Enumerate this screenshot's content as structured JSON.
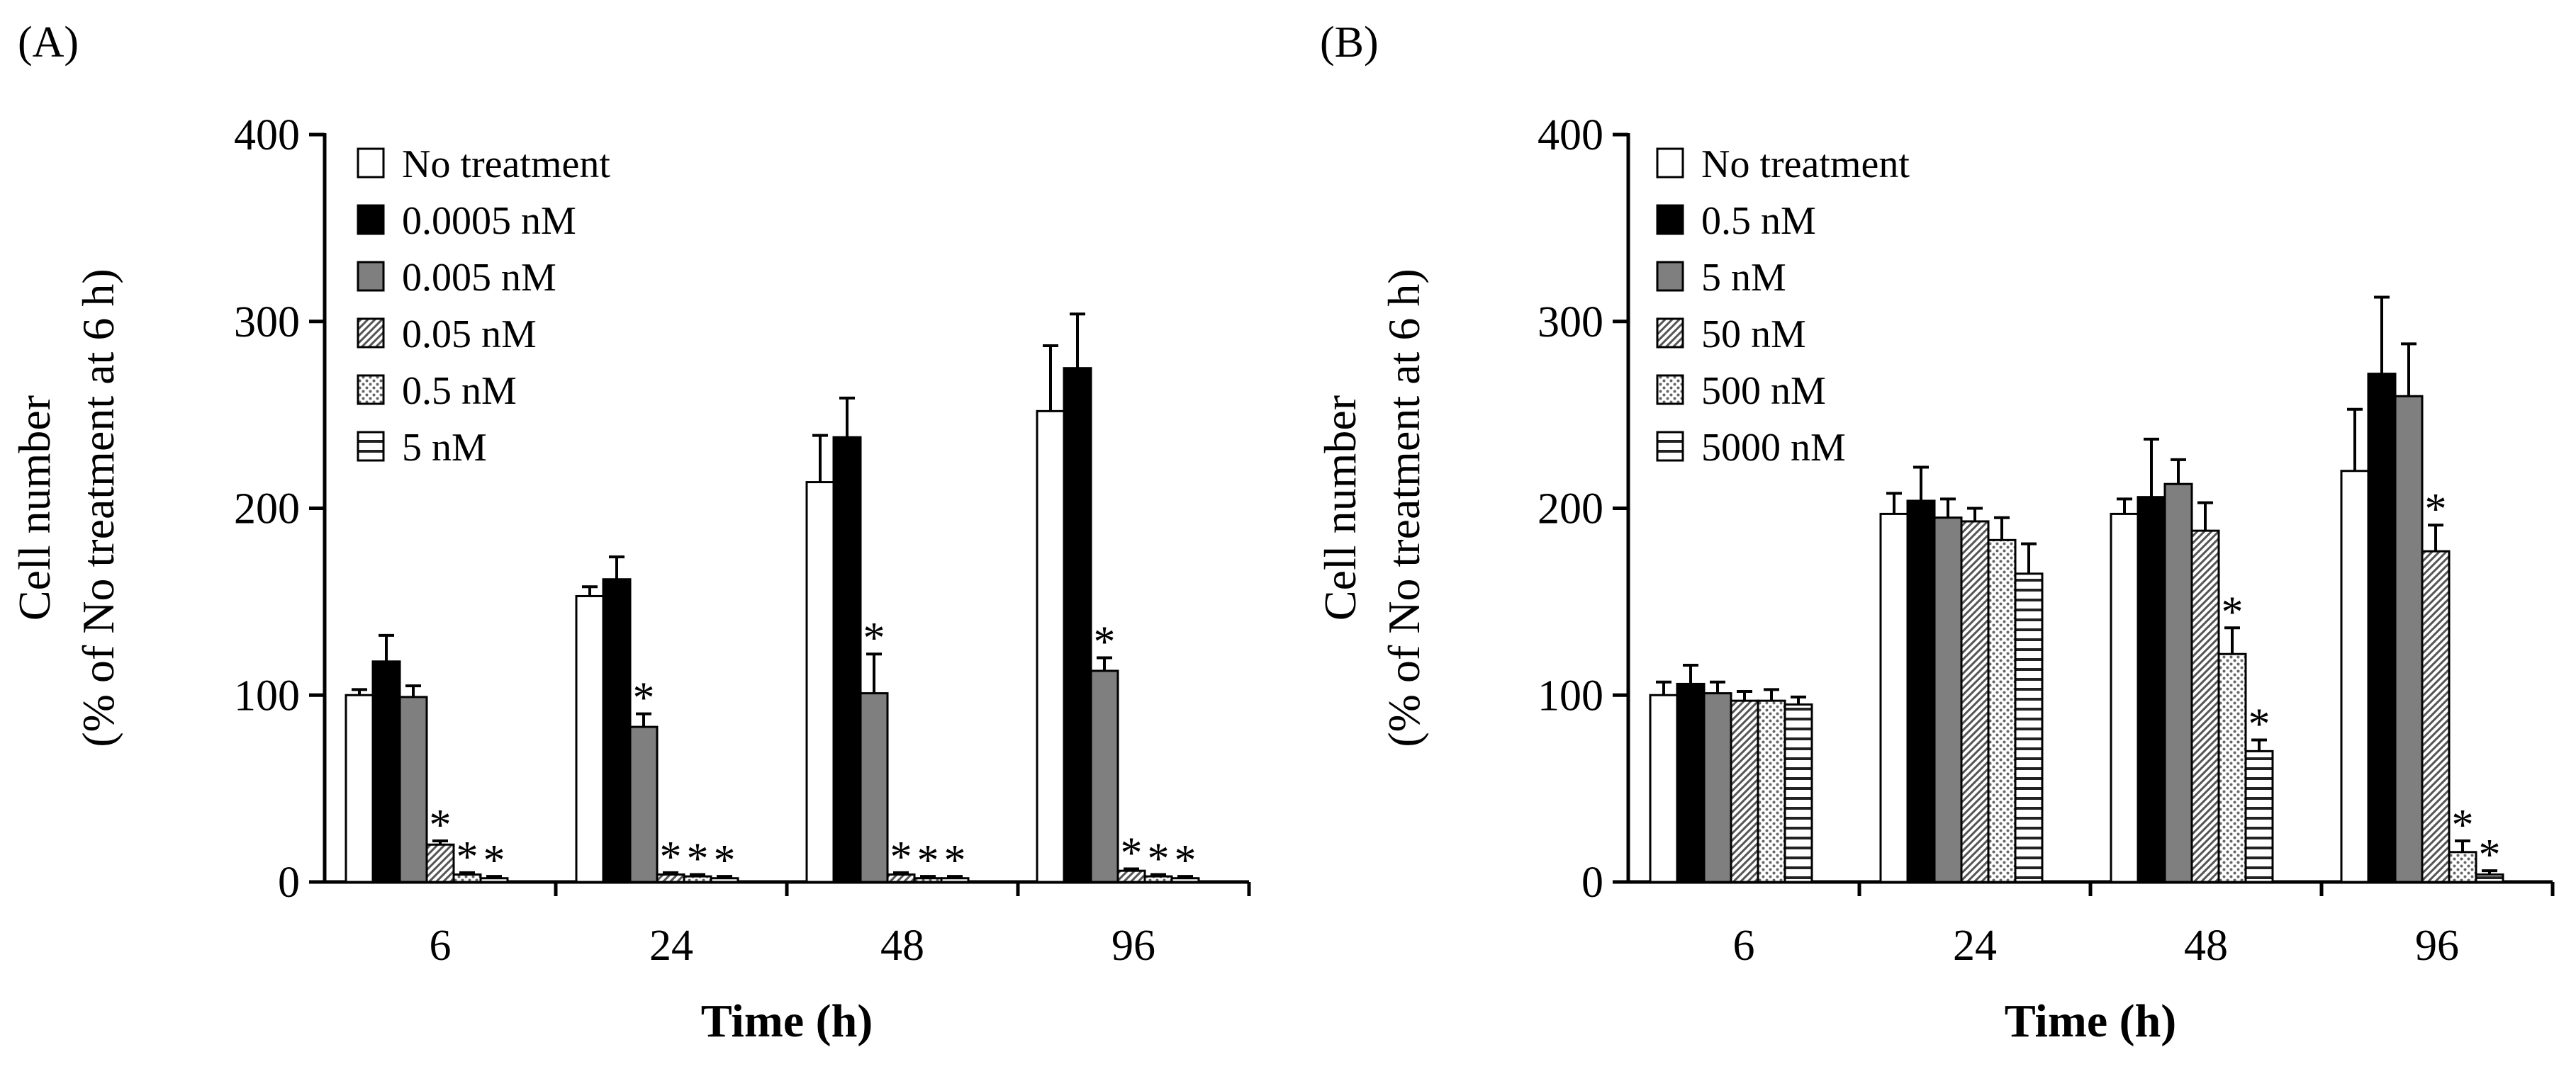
{
  "chart_data": [
    {
      "panel": "(A)",
      "type": "bar",
      "xlabel": "Time (h)",
      "ylabel_line1": "Cell number",
      "ylabel_line2": "(% of No treatment at 6 h)",
      "ylim": [
        0,
        400
      ],
      "yticks": [
        "0",
        "100",
        "200",
        "300",
        "400"
      ],
      "categories": [
        "6",
        "24",
        "48",
        "96"
      ],
      "series": [
        {
          "name": "No treatment",
          "pattern": "white",
          "values": [
            100,
            153,
            214,
            252
          ],
          "errors": [
            3,
            5,
            25,
            35
          ],
          "stars": [
            false,
            false,
            false,
            false
          ]
        },
        {
          "name": "0.0005 nM",
          "pattern": "black",
          "values": [
            118,
            162,
            238,
            275
          ],
          "errors": [
            14,
            12,
            21,
            29
          ],
          "stars": [
            false,
            false,
            false,
            false
          ]
        },
        {
          "name": "0.005 nM",
          "pattern": "gray",
          "values": [
            99,
            83,
            101,
            113
          ],
          "errors": [
            6,
            7,
            21,
            7
          ],
          "stars": [
            false,
            true,
            true,
            true
          ]
        },
        {
          "name": "0.05 nM",
          "pattern": "dense",
          "values": [
            20,
            4,
            4,
            6
          ],
          "errors": [
            2,
            1,
            1,
            1
          ],
          "stars": [
            true,
            true,
            true,
            true
          ]
        },
        {
          "name": "0.5 nM",
          "pattern": "dots",
          "values": [
            4,
            3,
            2,
            3
          ],
          "errors": [
            1,
            1,
            1,
            1
          ],
          "stars": [
            true,
            true,
            true,
            true
          ]
        },
        {
          "name": "5 nM",
          "pattern": "hlines",
          "values": [
            2,
            2,
            2,
            2
          ],
          "errors": [
            1,
            1,
            1,
            1
          ],
          "stars": [
            true,
            true,
            true,
            true
          ]
        }
      ],
      "star_symbol": "*"
    },
    {
      "panel": "(B)",
      "type": "bar",
      "xlabel": "Time (h)",
      "ylabel_line1": "Cell number",
      "ylabel_line2": "(% of No treatment at 6 h)",
      "ylim": [
        0,
        400
      ],
      "yticks": [
        "0",
        "100",
        "200",
        "300",
        "400"
      ],
      "categories": [
        "6",
        "24",
        "48",
        "96"
      ],
      "series": [
        {
          "name": "No treatment",
          "pattern": "white",
          "values": [
            100,
            197,
            197,
            220
          ],
          "errors": [
            7,
            11,
            8,
            33
          ],
          "stars": [
            false,
            false,
            false,
            false
          ]
        },
        {
          "name": "0.5 nM",
          "pattern": "black",
          "values": [
            106,
            204,
            206,
            272
          ],
          "errors": [
            10,
            18,
            31,
            41
          ],
          "stars": [
            false,
            false,
            false,
            false
          ]
        },
        {
          "name": "5 nM",
          "pattern": "gray",
          "values": [
            101,
            195,
            213,
            260
          ],
          "errors": [
            6,
            10,
            13,
            28
          ],
          "stars": [
            false,
            false,
            false,
            false
          ]
        },
        {
          "name": "50 nM",
          "pattern": "dense",
          "values": [
            97,
            193,
            188,
            177
          ],
          "errors": [
            5,
            7,
            15,
            14
          ],
          "stars": [
            false,
            false,
            false,
            true
          ]
        },
        {
          "name": "500 nM",
          "pattern": "dots",
          "values": [
            97,
            183,
            122,
            16
          ],
          "errors": [
            6,
            12,
            14,
            6
          ],
          "stars": [
            false,
            false,
            true,
            true
          ]
        },
        {
          "name": "5000 nM",
          "pattern": "hlines",
          "values": [
            95,
            165,
            70,
            4
          ],
          "errors": [
            4,
            16,
            6,
            2
          ],
          "stars": [
            false,
            false,
            true,
            true
          ]
        }
      ],
      "star_symbol": "*"
    }
  ]
}
